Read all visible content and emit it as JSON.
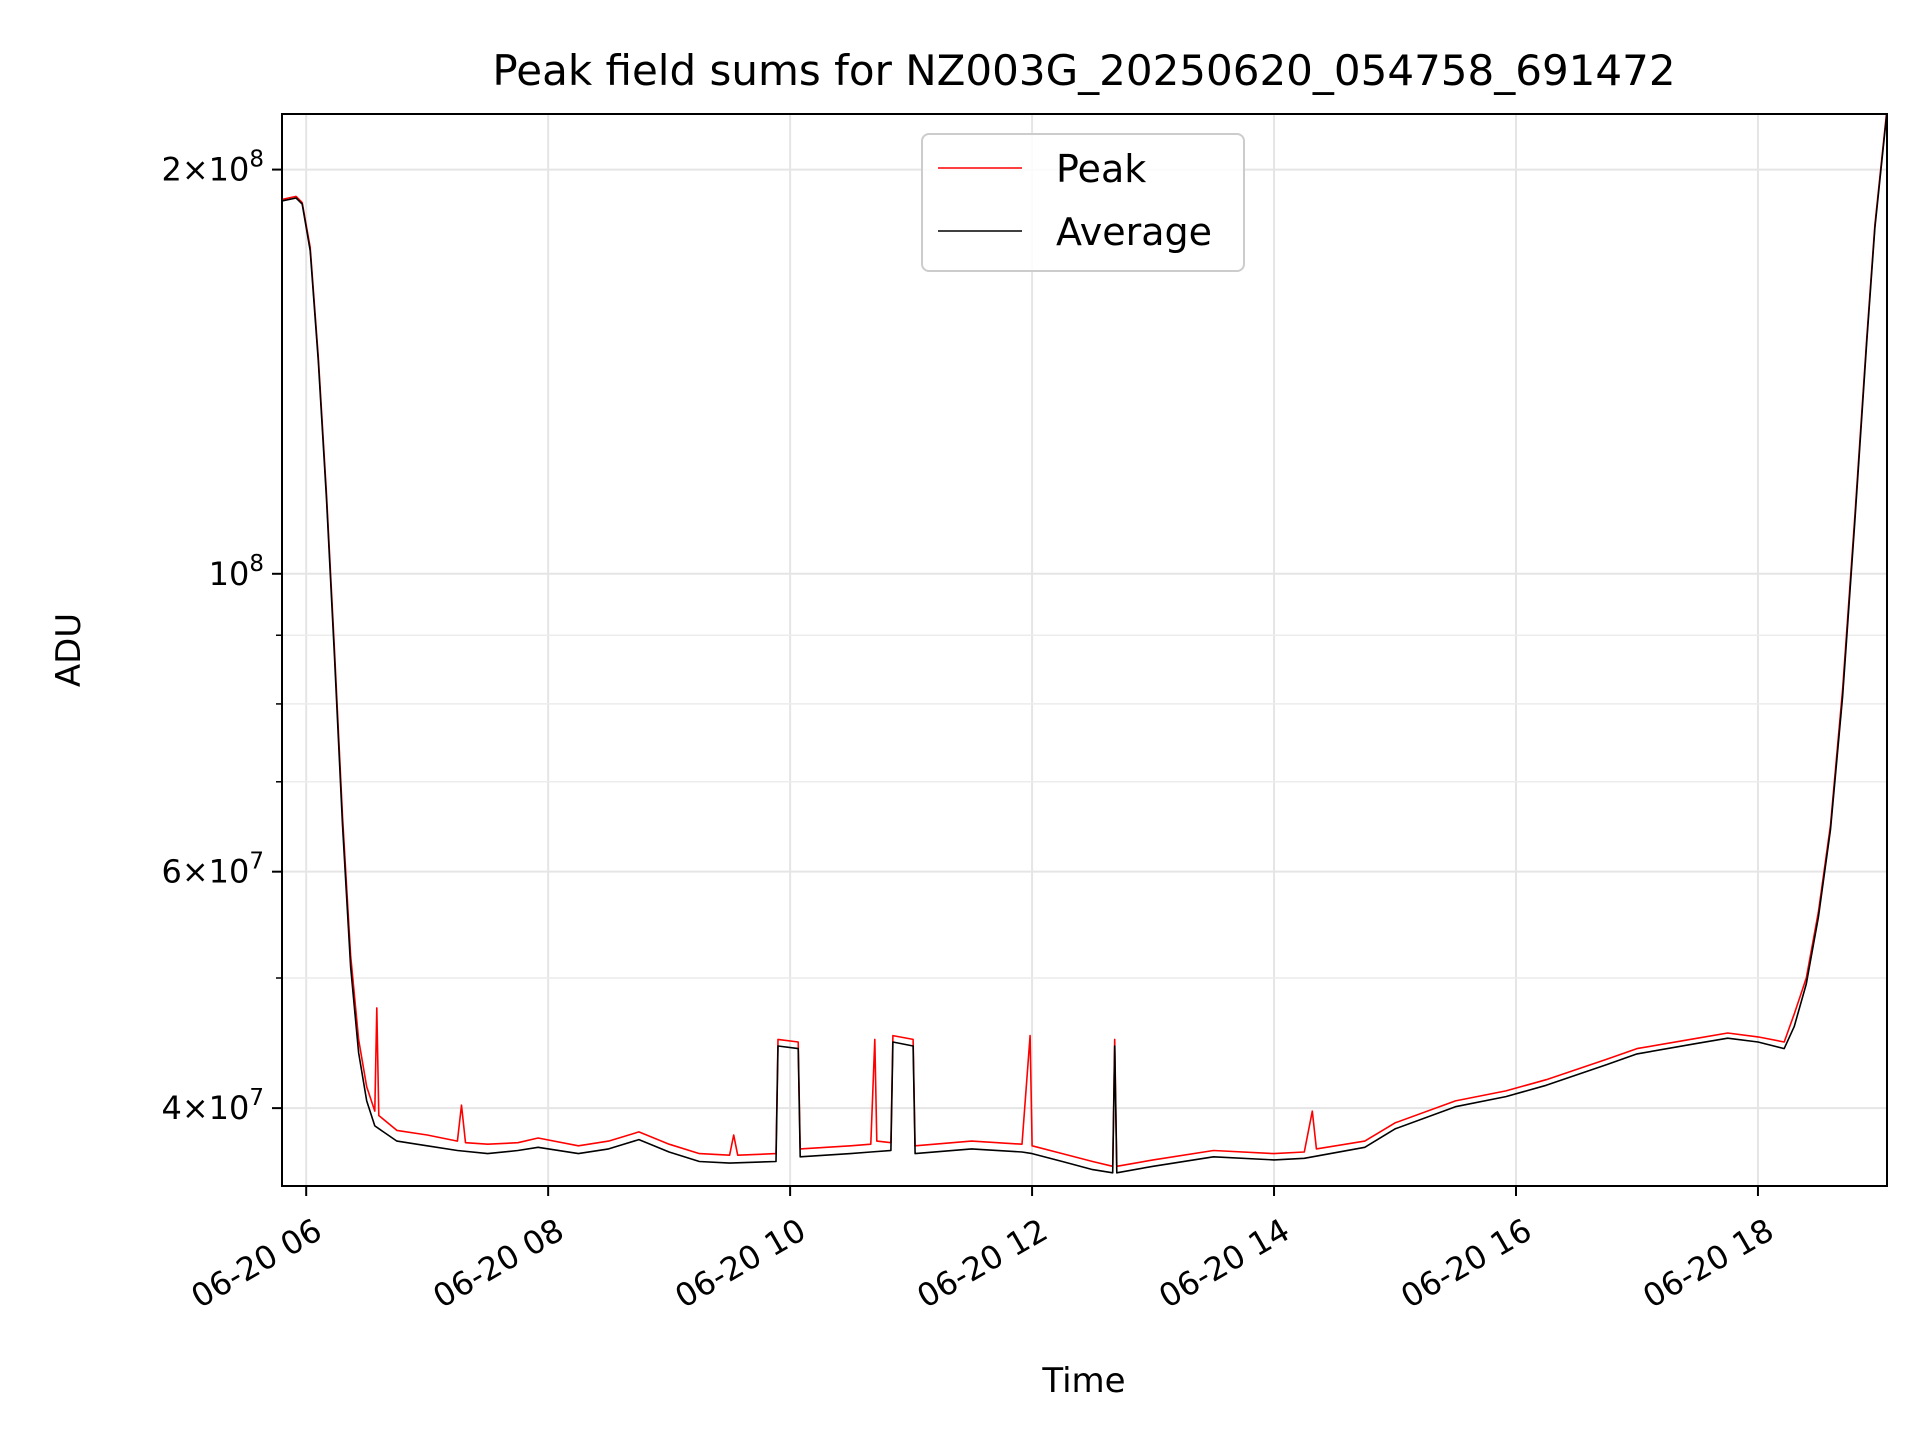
{
  "chart_data": {
    "type": "line",
    "title": "Peak field sums for NZ003G_20250620_054758_691472",
    "xlabel": "Time",
    "ylabel": "ADU",
    "yscale": "log",
    "xlim": [
      "2025-06-20T05:48",
      "2025-06-20T19:04"
    ],
    "ylim": [
      35000000,
      220000000
    ],
    "grid": true,
    "legend_position": "top-center",
    "x_ticks": [
      {
        "value": "2025-06-20T06:00",
        "label": "06-20 06"
      },
      {
        "value": "2025-06-20T08:00",
        "label": "06-20 08"
      },
      {
        "value": "2025-06-20T10:00",
        "label": "06-20 10"
      },
      {
        "value": "2025-06-20T12:00",
        "label": "06-20 12"
      },
      {
        "value": "2025-06-20T14:00",
        "label": "06-20 14"
      },
      {
        "value": "2025-06-20T16:00",
        "label": "06-20 16"
      },
      {
        "value": "2025-06-20T18:00",
        "label": "06-20 18"
      }
    ],
    "y_ticks": [
      {
        "value": 40000000,
        "base": "4",
        "exp": "7"
      },
      {
        "value": 60000000,
        "base": "6",
        "exp": "7"
      },
      {
        "value": 100000000,
        "base": "",
        "exp": "8"
      },
      {
        "value": 200000000,
        "base": "2",
        "exp": "8"
      }
    ],
    "y_minor_ticks": [
      50000000,
      70000000,
      80000000,
      90000000
    ],
    "series": [
      {
        "name": "Peak",
        "color": "#ff0000",
        "points": [
          [
            "2025-06-20T05:48",
            190000000
          ],
          [
            "2025-06-20T05:55",
            191000000
          ],
          [
            "2025-06-20T05:58",
            189000000
          ],
          [
            "2025-06-20T06:02",
            175000000
          ],
          [
            "2025-06-20T06:06",
            145000000
          ],
          [
            "2025-06-20T06:10",
            115000000
          ],
          [
            "2025-06-20T06:14",
            88000000
          ],
          [
            "2025-06-20T06:18",
            66000000
          ],
          [
            "2025-06-20T06:22",
            52000000
          ],
          [
            "2025-06-20T06:26",
            45000000
          ],
          [
            "2025-06-20T06:30",
            41500000
          ],
          [
            "2025-06-20T06:34",
            39800000
          ],
          [
            "2025-06-20T06:35",
            47500000
          ],
          [
            "2025-06-20T06:36",
            39500000
          ],
          [
            "2025-06-20T06:45",
            38500000
          ],
          [
            "2025-06-20T07:00",
            38200000
          ],
          [
            "2025-06-20T07:15",
            37800000
          ],
          [
            "2025-06-20T07:17",
            40200000
          ],
          [
            "2025-06-20T07:19",
            37700000
          ],
          [
            "2025-06-20T07:30",
            37600000
          ],
          [
            "2025-06-20T07:45",
            37700000
          ],
          [
            "2025-06-20T07:55",
            38000000
          ],
          [
            "2025-06-20T08:15",
            37500000
          ],
          [
            "2025-06-20T08:30",
            37800000
          ],
          [
            "2025-06-20T08:45",
            38400000
          ],
          [
            "2025-06-20T09:00",
            37600000
          ],
          [
            "2025-06-20T09:15",
            37000000
          ],
          [
            "2025-06-20T09:30",
            36900000
          ],
          [
            "2025-06-20T09:32",
            38200000
          ],
          [
            "2025-06-20T09:34",
            36900000
          ],
          [
            "2025-06-20T09:53",
            37000000
          ],
          [
            "2025-06-20T09:54",
            45000000
          ],
          [
            "2025-06-20T10:04",
            44800000
          ],
          [
            "2025-06-20T10:05",
            37300000
          ],
          [
            "2025-06-20T10:30",
            37500000
          ],
          [
            "2025-06-20T10:40",
            37600000
          ],
          [
            "2025-06-20T10:42",
            45000000
          ],
          [
            "2025-06-20T10:43",
            37800000
          ],
          [
            "2025-06-20T10:50",
            37700000
          ],
          [
            "2025-06-20T10:51",
            45300000
          ],
          [
            "2025-06-20T11:01",
            45000000
          ],
          [
            "2025-06-20T11:02",
            37500000
          ],
          [
            "2025-06-20T11:30",
            37800000
          ],
          [
            "2025-06-20T11:55",
            37600000
          ],
          [
            "2025-06-20T11:59",
            45300000
          ],
          [
            "2025-06-20T12:00",
            37500000
          ],
          [
            "2025-06-20T12:15",
            37000000
          ],
          [
            "2025-06-20T12:30",
            36500000
          ],
          [
            "2025-06-20T12:40",
            36200000
          ],
          [
            "2025-06-20T12:41",
            45000000
          ],
          [
            "2025-06-20T12:42",
            36200000
          ],
          [
            "2025-06-20T13:00",
            36600000
          ],
          [
            "2025-06-20T13:30",
            37200000
          ],
          [
            "2025-06-20T14:00",
            37000000
          ],
          [
            "2025-06-20T14:15",
            37100000
          ],
          [
            "2025-06-20T14:19",
            39800000
          ],
          [
            "2025-06-20T14:21",
            37300000
          ],
          [
            "2025-06-20T14:45",
            37800000
          ],
          [
            "2025-06-20T15:00",
            39000000
          ],
          [
            "2025-06-20T15:30",
            40500000
          ],
          [
            "2025-06-20T15:55",
            41200000
          ],
          [
            "2025-06-20T16:15",
            42000000
          ],
          [
            "2025-06-20T16:45",
            43500000
          ],
          [
            "2025-06-20T17:00",
            44300000
          ],
          [
            "2025-06-20T17:30",
            45100000
          ],
          [
            "2025-06-20T17:45",
            45500000
          ],
          [
            "2025-06-20T18:00",
            45200000
          ],
          [
            "2025-06-20T18:13",
            44800000
          ],
          [
            "2025-06-20T18:18",
            47000000
          ],
          [
            "2025-06-20T18:24",
            50000000
          ],
          [
            "2025-06-20T18:30",
            56000000
          ],
          [
            "2025-06-20T18:36",
            65000000
          ],
          [
            "2025-06-20T18:42",
            82000000
          ],
          [
            "2025-06-20T18:48",
            110000000
          ],
          [
            "2025-06-20T18:54",
            150000000
          ],
          [
            "2025-06-20T18:58",
            182000000
          ],
          [
            "2025-06-20T19:04",
            222000000
          ]
        ]
      },
      {
        "name": "Average",
        "color": "#000000",
        "points": [
          [
            "2025-06-20T05:48",
            189500000
          ],
          [
            "2025-06-20T05:55",
            190500000
          ],
          [
            "2025-06-20T05:58",
            188500000
          ],
          [
            "2025-06-20T06:02",
            174000000
          ],
          [
            "2025-06-20T06:06",
            144000000
          ],
          [
            "2025-06-20T06:10",
            114000000
          ],
          [
            "2025-06-20T06:14",
            87000000
          ],
          [
            "2025-06-20T06:18",
            65000000
          ],
          [
            "2025-06-20T06:22",
            51000000
          ],
          [
            "2025-06-20T06:26",
            44000000
          ],
          [
            "2025-06-20T06:30",
            40500000
          ],
          [
            "2025-06-20T06:34",
            38800000
          ],
          [
            "2025-06-20T06:45",
            37800000
          ],
          [
            "2025-06-20T07:00",
            37500000
          ],
          [
            "2025-06-20T07:15",
            37200000
          ],
          [
            "2025-06-20T07:30",
            37000000
          ],
          [
            "2025-06-20T07:45",
            37200000
          ],
          [
            "2025-06-20T07:55",
            37400000
          ],
          [
            "2025-06-20T08:15",
            37000000
          ],
          [
            "2025-06-20T08:30",
            37300000
          ],
          [
            "2025-06-20T08:45",
            37900000
          ],
          [
            "2025-06-20T09:00",
            37100000
          ],
          [
            "2025-06-20T09:15",
            36500000
          ],
          [
            "2025-06-20T09:30",
            36400000
          ],
          [
            "2025-06-20T09:53",
            36500000
          ],
          [
            "2025-06-20T09:54",
            44500000
          ],
          [
            "2025-06-20T10:04",
            44300000
          ],
          [
            "2025-06-20T10:05",
            36800000
          ],
          [
            "2025-06-20T10:30",
            37000000
          ],
          [
            "2025-06-20T10:40",
            37100000
          ],
          [
            "2025-06-20T10:50",
            37200000
          ],
          [
            "2025-06-20T10:51",
            44800000
          ],
          [
            "2025-06-20T11:01",
            44500000
          ],
          [
            "2025-06-20T11:02",
            37000000
          ],
          [
            "2025-06-20T11:30",
            37300000
          ],
          [
            "2025-06-20T11:55",
            37100000
          ],
          [
            "2025-06-20T12:00",
            37000000
          ],
          [
            "2025-06-20T12:15",
            36500000
          ],
          [
            "2025-06-20T12:30",
            36000000
          ],
          [
            "2025-06-20T12:40",
            35800000
          ],
          [
            "2025-06-20T12:41",
            44500000
          ],
          [
            "2025-06-20T12:42",
            35800000
          ],
          [
            "2025-06-20T13:00",
            36200000
          ],
          [
            "2025-06-20T13:30",
            36800000
          ],
          [
            "2025-06-20T14:00",
            36600000
          ],
          [
            "2025-06-20T14:15",
            36700000
          ],
          [
            "2025-06-20T14:45",
            37400000
          ],
          [
            "2025-06-20T15:00",
            38600000
          ],
          [
            "2025-06-20T15:30",
            40100000
          ],
          [
            "2025-06-20T15:55",
            40800000
          ],
          [
            "2025-06-20T16:15",
            41600000
          ],
          [
            "2025-06-20T16:45",
            43100000
          ],
          [
            "2025-06-20T17:00",
            43900000
          ],
          [
            "2025-06-20T17:30",
            44700000
          ],
          [
            "2025-06-20T17:45",
            45100000
          ],
          [
            "2025-06-20T18:00",
            44800000
          ],
          [
            "2025-06-20T18:13",
            44300000
          ],
          [
            "2025-06-20T18:18",
            46000000
          ],
          [
            "2025-06-20T18:24",
            49500000
          ],
          [
            "2025-06-20T18:30",
            55500000
          ],
          [
            "2025-06-20T18:36",
            64500000
          ],
          [
            "2025-06-20T18:42",
            81000000
          ],
          [
            "2025-06-20T18:48",
            109000000
          ],
          [
            "2025-06-20T18:54",
            149000000
          ],
          [
            "2025-06-20T18:58",
            181000000
          ],
          [
            "2025-06-20T19:04",
            221000000
          ]
        ]
      }
    ]
  }
}
